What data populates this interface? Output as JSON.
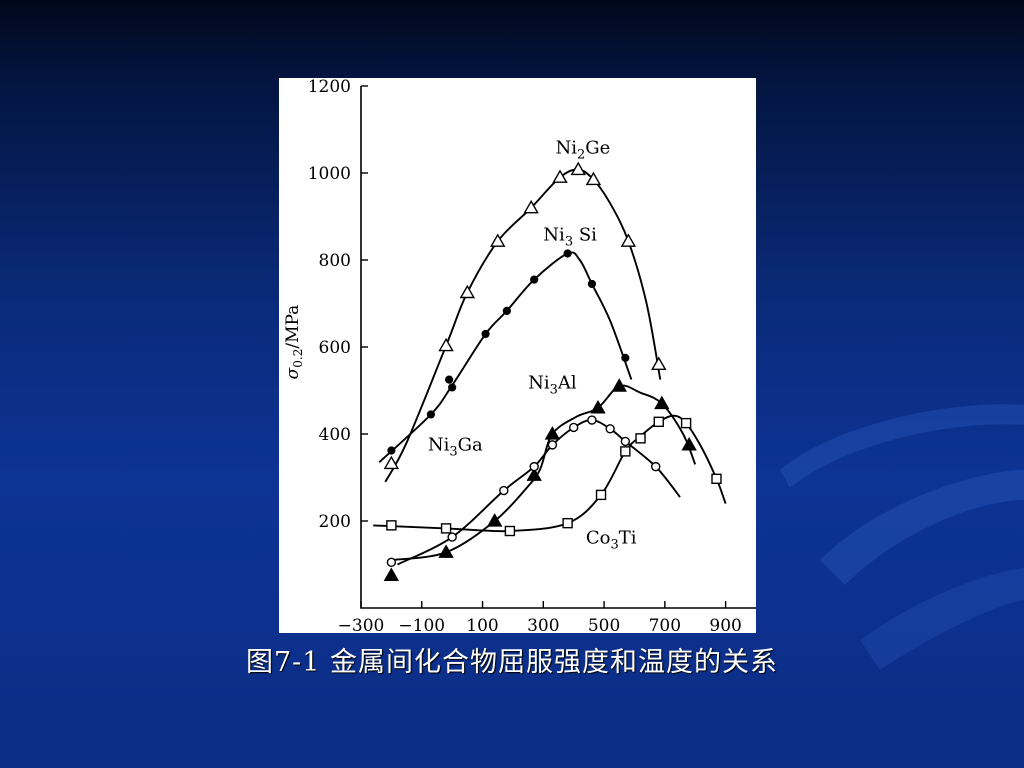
{
  "slide": {
    "caption": "图7-1   金属间化合物屈服强度和温度的关系"
  },
  "colors": {
    "background_top": "#01081a",
    "background_main": "#0d3394",
    "plot_ink": "#000000",
    "plot_background": "#ffffff",
    "caption_text": "#ffffff"
  },
  "chart_data": {
    "type": "line",
    "ylabel": "σ0.2/MPa",
    "xlabel": "",
    "xlim": [
      -300,
      1000
    ],
    "ylim": [
      0,
      1200
    ],
    "x_ticks": [
      -300,
      -100,
      100,
      300,
      500,
      700,
      900
    ],
    "y_ticks": [
      200,
      400,
      600,
      800,
      1000,
      1200
    ],
    "grid": false,
    "series": [
      {
        "name": "Ni2Ge",
        "marker": "triangle-open",
        "label": {
          "base": "Ni",
          "sub": "2",
          "rest": "Ge"
        },
        "points": [
          [
            -200,
            332
          ],
          [
            -20,
            603
          ],
          [
            50,
            725
          ],
          [
            150,
            843
          ],
          [
            260,
            920
          ],
          [
            355,
            990
          ],
          [
            415,
            1008
          ],
          [
            465,
            985
          ],
          [
            580,
            843
          ],
          [
            680,
            560
          ]
        ],
        "curve": [
          [
            -220,
            290
          ],
          [
            -150,
            380
          ],
          [
            -20,
            603
          ],
          [
            50,
            725
          ],
          [
            150,
            843
          ],
          [
            260,
            920
          ],
          [
            355,
            990
          ],
          [
            415,
            1008
          ],
          [
            465,
            985
          ],
          [
            520,
            930
          ],
          [
            580,
            843
          ],
          [
            640,
            700
          ],
          [
            685,
            525
          ]
        ]
      },
      {
        "name": "Ni3Si",
        "marker": "circle-filled",
        "label": {
          "base": "Ni",
          "sub": "3",
          "rest": " Si"
        },
        "points": [
          [
            -200,
            362
          ],
          [
            -70,
            445
          ],
          [
            -10,
            525
          ],
          [
            0,
            507
          ],
          [
            110,
            630
          ],
          [
            180,
            683
          ],
          [
            270,
            755
          ],
          [
            380,
            815
          ],
          [
            460,
            745
          ],
          [
            570,
            575
          ]
        ],
        "curve": [
          [
            -240,
            335
          ],
          [
            -70,
            445
          ],
          [
            0,
            512
          ],
          [
            110,
            630
          ],
          [
            180,
            683
          ],
          [
            270,
            755
          ],
          [
            380,
            815
          ],
          [
            420,
            800
          ],
          [
            460,
            745
          ],
          [
            520,
            660
          ],
          [
            590,
            525
          ]
        ]
      },
      {
        "name": "Ni3Al",
        "marker": "triangle-filled",
        "label": {
          "base": "Ni",
          "sub": "3",
          "rest": "Al"
        },
        "points": [
          [
            -200,
            75
          ],
          [
            -20,
            128
          ],
          [
            140,
            200
          ],
          [
            270,
            305
          ],
          [
            330,
            400
          ],
          [
            480,
            460
          ],
          [
            550,
            510
          ],
          [
            690,
            470
          ],
          [
            780,
            375
          ]
        ],
        "curve": [
          [
            -200,
            110
          ],
          [
            -20,
            128
          ],
          [
            140,
            200
          ],
          [
            250,
            280
          ],
          [
            290,
            320
          ],
          [
            330,
            400
          ],
          [
            410,
            440
          ],
          [
            480,
            460
          ],
          [
            550,
            510
          ],
          [
            620,
            495
          ],
          [
            690,
            470
          ],
          [
            760,
            400
          ],
          [
            800,
            330
          ]
        ]
      },
      {
        "name": "Ni3Ga",
        "marker": "circle-open",
        "label": {
          "base": "Ni",
          "sub": "3",
          "rest": "Ga"
        },
        "points": [
          [
            -200,
            105
          ],
          [
            0,
            163
          ],
          [
            170,
            270
          ],
          [
            270,
            325
          ],
          [
            330,
            375
          ],
          [
            400,
            415
          ],
          [
            460,
            432
          ],
          [
            520,
            412
          ],
          [
            570,
            383
          ],
          [
            670,
            325
          ]
        ],
        "curve": [
          [
            -180,
            100
          ],
          [
            0,
            163
          ],
          [
            170,
            270
          ],
          [
            270,
            325
          ],
          [
            330,
            375
          ],
          [
            400,
            415
          ],
          [
            460,
            432
          ],
          [
            520,
            412
          ],
          [
            570,
            383
          ],
          [
            670,
            325
          ],
          [
            750,
            255
          ]
        ]
      },
      {
        "name": "Co3Ti",
        "marker": "square-open",
        "label": {
          "base": "Co",
          "sub": "3",
          "rest": "Ti"
        },
        "points": [
          [
            -200,
            190
          ],
          [
            -20,
            183
          ],
          [
            190,
            177
          ],
          [
            380,
            195
          ],
          [
            490,
            260
          ],
          [
            570,
            360
          ],
          [
            620,
            390
          ],
          [
            680,
            428
          ],
          [
            770,
            425
          ],
          [
            870,
            297
          ]
        ],
        "curve": [
          [
            -260,
            190
          ],
          [
            -20,
            183
          ],
          [
            190,
            177
          ],
          [
            380,
            195
          ],
          [
            490,
            260
          ],
          [
            570,
            360
          ],
          [
            620,
            395
          ],
          [
            680,
            428
          ],
          [
            730,
            442
          ],
          [
            770,
            425
          ],
          [
            820,
            370
          ],
          [
            870,
            297
          ],
          [
            900,
            240
          ]
        ]
      }
    ]
  }
}
